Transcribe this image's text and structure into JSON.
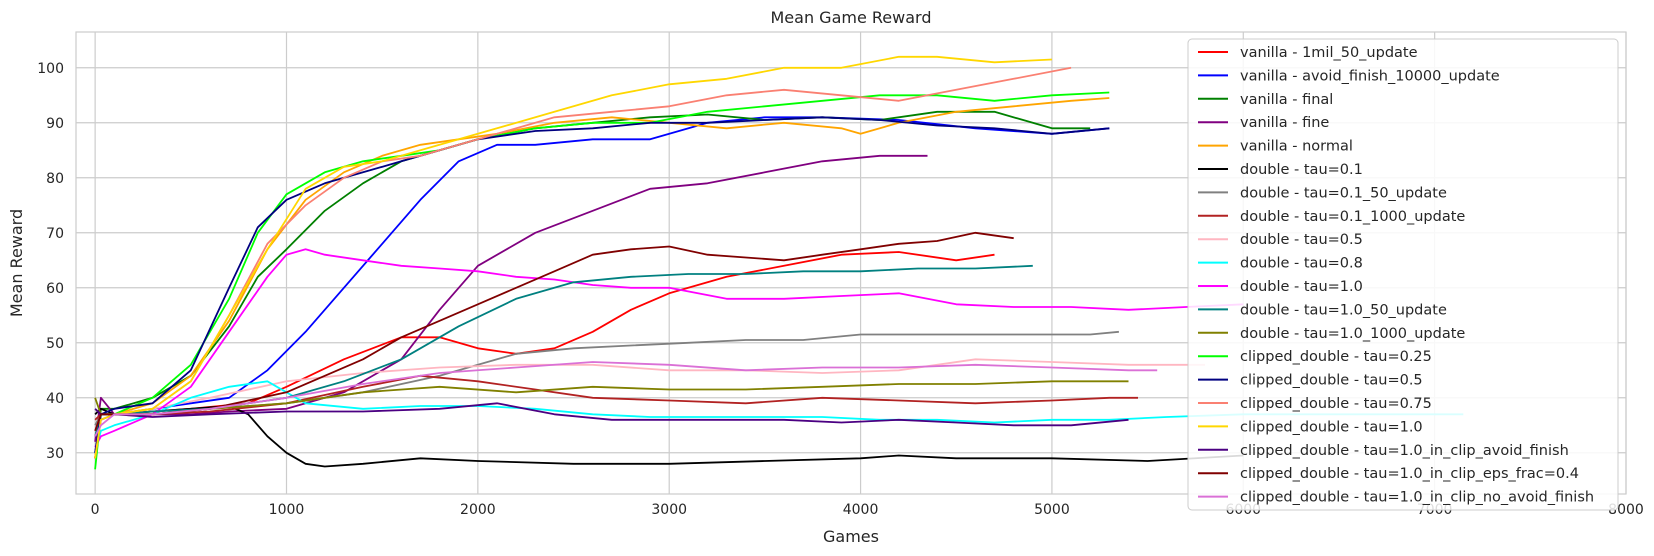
{
  "chart_data": {
    "type": "line",
    "title": "Mean Game Reward",
    "xlabel": "Games",
    "ylabel": "Mean Reward",
    "xlim": [
      -100,
      8000
    ],
    "ylim": [
      22.5,
      106.5
    ],
    "xticks": [
      0,
      1000,
      2000,
      3000,
      4000,
      5000,
      6000,
      7000,
      8000
    ],
    "yticks": [
      30,
      40,
      50,
      60,
      70,
      80,
      90,
      100
    ],
    "grid": true,
    "legend_position": "top-right",
    "series": [
      {
        "name": "vanilla - 1mil_50_update",
        "color": "#ff0000",
        "x": [
          0,
          30,
          100,
          300,
          500,
          800,
          1000,
          1300,
          1600,
          1800,
          2000,
          2200,
          2400,
          2600,
          2800,
          3000,
          3300,
          3600,
          3900,
          4200,
          4500,
          4700
        ],
        "y": [
          29,
          37,
          37,
          37.5,
          38,
          39,
          42,
          47,
          51,
          51,
          49,
          48,
          49,
          52,
          56,
          59,
          62,
          64,
          66,
          66.5,
          65,
          66
        ]
      },
      {
        "name": "vanilla - avoid_finish_10000_update",
        "color": "#0000ff",
        "x": [
          0,
          30,
          100,
          300,
          500,
          700,
          900,
          1100,
          1300,
          1500,
          1700,
          1900,
          2100,
          2300,
          2600,
          2900,
          3200,
          3500,
          3800,
          4200,
          4600,
          5000,
          5300
        ],
        "y": [
          30,
          36,
          37,
          38,
          39,
          40,
          45,
          52,
          60,
          68,
          76,
          83,
          86,
          86,
          87,
          87,
          90,
          91,
          91,
          90.5,
          89,
          88,
          89
        ]
      },
      {
        "name": "vanilla - final",
        "color": "#008000",
        "x": [
          0,
          30,
          100,
          300,
          500,
          700,
          850,
          1000,
          1200,
          1400,
          1600,
          1800,
          2000,
          2300,
          2600,
          2900,
          3200,
          3500,
          3800,
          4100,
          4400,
          4700,
          5000,
          5200
        ],
        "y": [
          29,
          38,
          38,
          40,
          44,
          53,
          62,
          67,
          74,
          79,
          83,
          85,
          87,
          89,
          90,
          91,
          91.5,
          90.5,
          91,
          90.5,
          92,
          92,
          89,
          89
        ]
      },
      {
        "name": "vanilla - fine",
        "color": "#800080",
        "x": [
          0,
          30,
          100,
          300,
          500,
          700,
          1000,
          1300,
          1600,
          1800,
          2000,
          2300,
          2600,
          2900,
          3200,
          3500,
          3800,
          4100,
          4350
        ],
        "y": [
          32,
          40,
          37,
          37,
          37,
          37.5,
          38,
          41,
          47,
          56,
          64,
          70,
          74,
          78,
          79,
          81,
          83,
          84,
          84
        ]
      },
      {
        "name": "vanilla - normal",
        "color": "#ffa500",
        "x": [
          0,
          30,
          100,
          300,
          500,
          700,
          900,
          1100,
          1300,
          1500,
          1700,
          1900,
          2100,
          2400,
          2700,
          3000,
          3300,
          3600,
          3900,
          4000,
          4200,
          4500,
          4800,
          5100,
          5300
        ],
        "y": [
          29,
          37,
          37,
          39,
          44,
          54,
          67,
          76,
          81,
          84,
          86,
          87,
          88,
          90,
          91,
          90,
          89,
          90,
          89,
          88,
          90,
          92,
          93,
          94,
          94.5
        ]
      },
      {
        "name": "double - tau=0.1",
        "color": "#000000",
        "x": [
          0,
          30,
          100,
          300,
          500,
          700,
          800,
          900,
          1000,
          1100,
          1200,
          1400,
          1700,
          2000,
          2500,
          3000,
          3500,
          4000,
          4200,
          4500,
          5000,
          5500,
          6000
        ],
        "y": [
          37,
          38,
          37,
          37.5,
          38,
          38.5,
          37,
          33,
          30,
          28,
          27.5,
          28,
          29,
          28.5,
          28,
          28,
          28.5,
          29,
          29.5,
          29,
          29,
          28.5,
          29.5
        ]
      },
      {
        "name": "double - tau=0.1_50_update",
        "color": "#808080",
        "x": [
          0,
          30,
          100,
          300,
          600,
          1000,
          1400,
          1800,
          2200,
          2500,
          2800,
          3100,
          3400,
          3700,
          4000,
          4300,
          4600,
          4900,
          5200,
          5350
        ],
        "y": [
          35,
          37,
          37,
          37,
          38,
          39,
          41,
          44,
          48,
          49,
          49.5,
          50,
          50.5,
          50.5,
          51.5,
          51.5,
          51.5,
          51.5,
          51.5,
          52
        ]
      },
      {
        "name": "double - tau=0.1_1000_update",
        "color": "#b22222",
        "x": [
          0,
          30,
          100,
          300,
          600,
          1000,
          1400,
          1700,
          2000,
          2300,
          2600,
          3000,
          3400,
          3800,
          4200,
          4600,
          5000,
          5300,
          5450
        ],
        "y": [
          36,
          37,
          37,
          37,
          37.5,
          39,
          42,
          44,
          43,
          41.5,
          40,
          39.5,
          39,
          40,
          39.5,
          39,
          39.5,
          40,
          40
        ]
      },
      {
        "name": "double - tau=0.5",
        "color": "#ffb6c1",
        "x": [
          0,
          30,
          100,
          300,
          600,
          1000,
          1400,
          1800,
          2200,
          2600,
          3000,
          3400,
          3800,
          4200,
          4600,
          5000,
          5400,
          5800
        ],
        "y": [
          34,
          37,
          37,
          38,
          40,
          43,
          44.5,
          45.5,
          46,
          46,
          45,
          45,
          44.5,
          45,
          47,
          46.5,
          46,
          46
        ]
      },
      {
        "name": "double - tau=0.8",
        "color": "#00ffff",
        "x": [
          0,
          30,
          100,
          300,
          500,
          700,
          900,
          1100,
          1400,
          1700,
          2000,
          2300,
          2600,
          2900,
          3200,
          3500,
          3800,
          4100,
          4400,
          4700,
          5000,
          5300,
          5600,
          6000,
          6500,
          7000,
          7150
        ],
        "y": [
          30,
          34,
          35,
          37,
          40,
          42,
          43,
          39,
          38,
          38.5,
          38.5,
          38,
          37,
          36.5,
          36.5,
          36.5,
          36.5,
          36,
          36,
          35.5,
          36,
          36,
          36.5,
          37,
          37,
          37,
          37
        ]
      },
      {
        "name": "double - tau=1.0",
        "color": "#ff00ff",
        "x": [
          0,
          30,
          100,
          300,
          500,
          700,
          900,
          1000,
          1100,
          1200,
          1400,
          1600,
          1800,
          2000,
          2200,
          2400,
          2600,
          2800,
          3000,
          3300,
          3600,
          3900,
          4200,
          4500,
          4800,
          5100,
          5400,
          5700,
          6000
        ],
        "y": [
          31,
          33,
          34,
          37,
          42,
          52,
          62,
          66,
          67,
          66,
          65,
          64,
          63.5,
          63,
          62,
          61.5,
          60.5,
          60,
          60,
          58,
          58,
          58.5,
          59,
          57,
          56.5,
          56.5,
          56,
          56.5,
          57
        ]
      },
      {
        "name": "double - tau=1.0_50_update",
        "color": "#008080",
        "x": [
          0,
          30,
          100,
          300,
          600,
          1000,
          1300,
          1600,
          1900,
          2200,
          2500,
          2800,
          3100,
          3400,
          3700,
          4000,
          4300,
          4600,
          4900
        ],
        "y": [
          33,
          37,
          37,
          37.5,
          38,
          40,
          43,
          47,
          53,
          58,
          61,
          62,
          62.5,
          62.5,
          63,
          63,
          63.5,
          63.5,
          64
        ]
      },
      {
        "name": "double - tau=1.0_1000_update",
        "color": "#808000",
        "x": [
          0,
          30,
          100,
          300,
          600,
          1000,
          1400,
          1800,
          2200,
          2600,
          3000,
          3400,
          3800,
          4200,
          4600,
          5000,
          5400
        ],
        "y": [
          40,
          37,
          37,
          37,
          38,
          39,
          41,
          42,
          41,
          42,
          41.5,
          41.5,
          42,
          42.5,
          42.5,
          43,
          43
        ]
      },
      {
        "name": "clipped_double - tau=0.25",
        "color": "#00ff00",
        "x": [
          0,
          30,
          100,
          300,
          500,
          700,
          850,
          1000,
          1200,
          1400,
          1600,
          1800,
          2000,
          2300,
          2600,
          2900,
          3200,
          3500,
          3800,
          4100,
          4400,
          4700,
          5000,
          5300
        ],
        "y": [
          27,
          37,
          37,
          40,
          46,
          58,
          70,
          77,
          81,
          83,
          84,
          85,
          87,
          89,
          90,
          90,
          92,
          93,
          94,
          95,
          95,
          94,
          95,
          95.5
        ]
      },
      {
        "name": "clipped_double - tau=0.5",
        "color": "#000080",
        "x": [
          0,
          30,
          100,
          300,
          500,
          700,
          850,
          1000,
          1200,
          1400,
          1600,
          1800,
          2000,
          2300,
          2600,
          2900,
          3200,
          3500,
          3800,
          4100,
          4400,
          4700,
          5000,
          5300
        ],
        "y": [
          30,
          37,
          38,
          39,
          45,
          60,
          71,
          76,
          79,
          81,
          83,
          85,
          87,
          88.5,
          89,
          90,
          90,
          90.5,
          91,
          90.5,
          89.5,
          89,
          88,
          89
        ]
      },
      {
        "name": "clipped_double - tau=0.75",
        "color": "#fa8072",
        "x": [
          0,
          30,
          100,
          300,
          500,
          700,
          900,
          1100,
          1300,
          1500,
          1700,
          1900,
          2100,
          2400,
          2700,
          3000,
          3300,
          3600,
          3900,
          4200,
          4500,
          4800,
          5100
        ],
        "y": [
          29,
          36,
          37,
          38,
          43,
          55,
          68,
          75,
          80,
          83,
          84,
          86,
          88,
          91,
          92,
          93,
          95,
          96,
          95,
          94,
          96,
          98,
          100
        ]
      },
      {
        "name": "clipped_double - tau=1.0",
        "color": "#ffd700",
        "x": [
          0,
          30,
          100,
          300,
          500,
          700,
          900,
          1100,
          1300,
          1500,
          1700,
          1900,
          2100,
          2400,
          2700,
          3000,
          3300,
          3600,
          3900,
          4200,
          4400,
          4700,
          5000
        ],
        "y": [
          29,
          36,
          37,
          38,
          43,
          55,
          67,
          78,
          82,
          83,
          85,
          87,
          89,
          92,
          95,
          97,
          98,
          100,
          100,
          102,
          102,
          101,
          101.5
        ]
      },
      {
        "name": "clipped_double - tau=1.0_in_clip_avoid_finish",
        "color": "#4b0082",
        "x": [
          0,
          30,
          100,
          300,
          600,
          1000,
          1400,
          1800,
          2100,
          2400,
          2700,
          3000,
          3300,
          3600,
          3900,
          4200,
          4500,
          4800,
          5100,
          5400
        ],
        "y": [
          38,
          37,
          37,
          36.5,
          37,
          37.5,
          37.5,
          38,
          39,
          37,
          36,
          36,
          36,
          36,
          35.5,
          36,
          35.5,
          35,
          35,
          36
        ]
      },
      {
        "name": "clipped_double - tau=1.0_in_clip_eps_frac=0.4",
        "color": "#800000",
        "x": [
          0,
          30,
          100,
          300,
          600,
          1000,
          1200,
          1400,
          1600,
          1800,
          2000,
          2200,
          2400,
          2600,
          2800,
          3000,
          3200,
          3400,
          3600,
          3800,
          4000,
          4200,
          4400,
          4600,
          4800
        ],
        "y": [
          34,
          37,
          37,
          37,
          38,
          41,
          44,
          47,
          51,
          54,
          57,
          60,
          63,
          66,
          67,
          67.5,
          66,
          65.5,
          65,
          66,
          67,
          68,
          68.5,
          70,
          69
        ]
      },
      {
        "name": "clipped_double - tau=1.0_in_clip_no_avoid_finish",
        "color": "#da70d6",
        "x": [
          0,
          30,
          100,
          300,
          600,
          1000,
          1400,
          1800,
          2200,
          2600,
          3000,
          3400,
          3800,
          4200,
          4600,
          5000,
          5400,
          5550
        ],
        "y": [
          33,
          35,
          37,
          37,
          38,
          40,
          42.5,
          44.5,
          45.5,
          46.5,
          46,
          45,
          45.5,
          45.5,
          46,
          45.5,
          45,
          45
        ]
      }
    ]
  }
}
